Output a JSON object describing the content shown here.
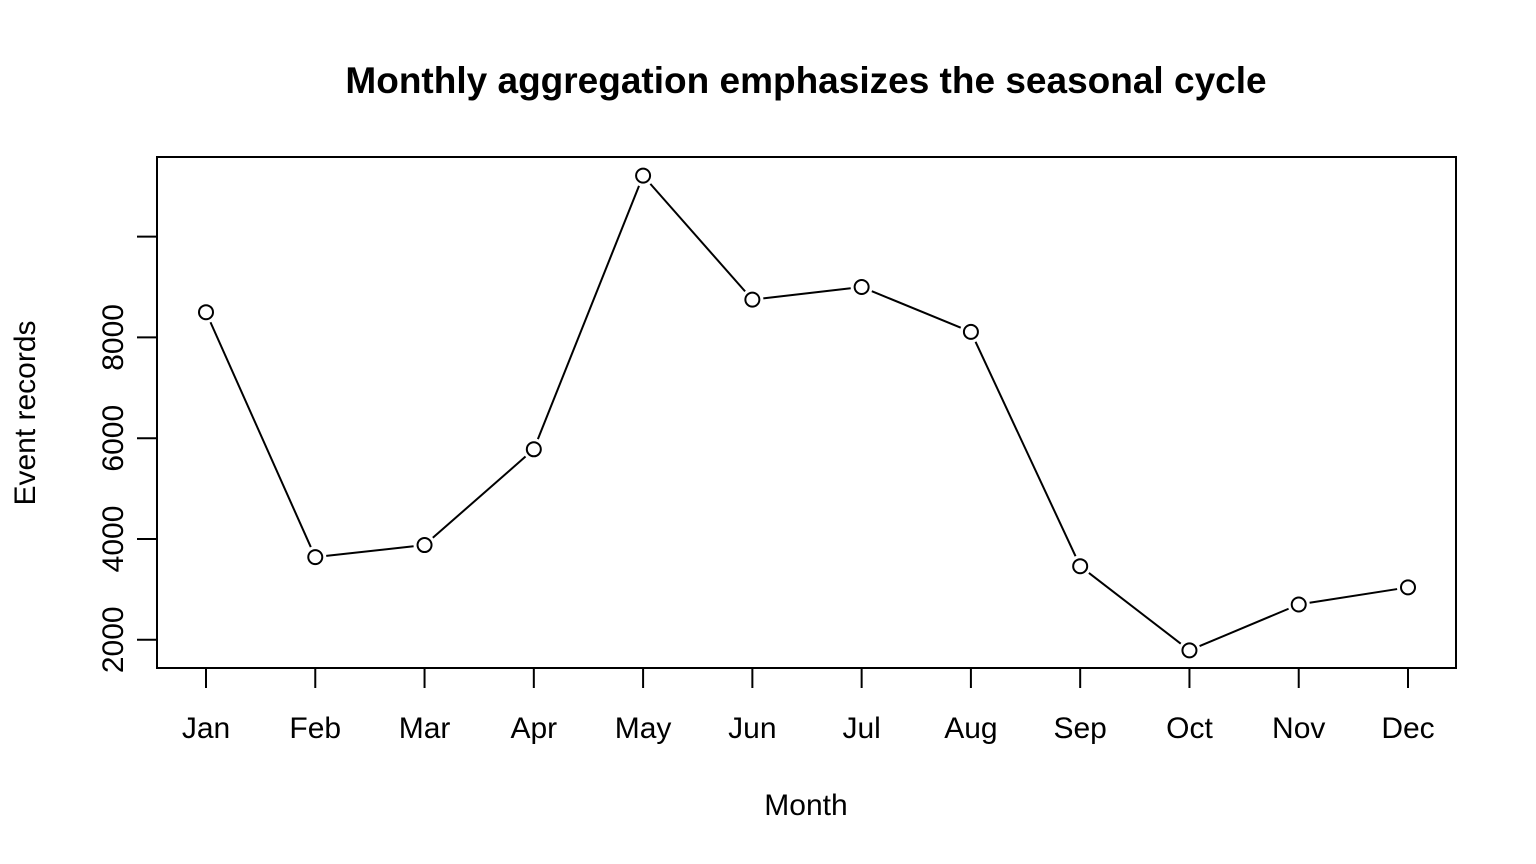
{
  "chart_data": {
    "type": "line",
    "title": "Monthly aggregation emphasizes the seasonal cycle",
    "xlabel": "Month",
    "ylabel": "Event records",
    "categories": [
      "Jan",
      "Feb",
      "Mar",
      "Apr",
      "May",
      "Jun",
      "Jul",
      "Aug",
      "Sep",
      "Oct",
      "Nov",
      "Dec"
    ],
    "series": [
      {
        "values": [
          8500,
          3640,
          3880,
          5780,
          11210,
          8750,
          9000,
          8110,
          3460,
          1790,
          2700,
          3040
        ],
        "color": "#000000",
        "marker": "open-circle"
      }
    ],
    "yticks": [
      2000,
      4000,
      6000,
      8000,
      10000
    ],
    "yticks_labeled": [
      2000,
      4000,
      6000,
      8000
    ],
    "ylim": [
      1440,
      11580
    ],
    "grid": false,
    "legend": "none"
  }
}
